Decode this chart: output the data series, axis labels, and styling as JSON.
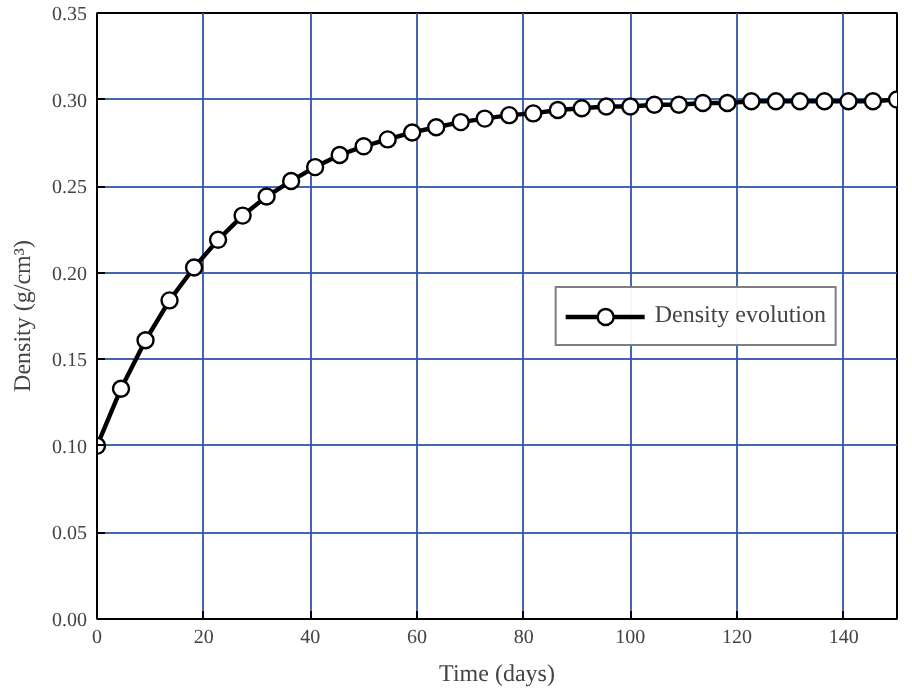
{
  "chart_data": {
    "type": "line",
    "xlabel": "Time (days)",
    "ylabel": "Density (g/cm³)",
    "x": [
      0,
      4.5,
      9.1,
      13.6,
      18.2,
      22.7,
      27.3,
      31.8,
      36.4,
      40.9,
      45.5,
      50.0,
      54.5,
      59.1,
      63.6,
      68.2,
      72.7,
      77.3,
      81.8,
      86.4,
      90.9,
      95.5,
      100.0,
      104.5,
      109.1,
      113.6,
      118.2,
      122.7,
      127.3,
      131.8,
      136.4,
      140.9,
      145.5,
      150.0
    ],
    "series": [
      {
        "name": "Density evolution",
        "color": "#000000",
        "values": [
          0.1,
          0.133,
          0.161,
          0.184,
          0.203,
          0.219,
          0.233,
          0.244,
          0.253,
          0.261,
          0.268,
          0.273,
          0.277,
          0.281,
          0.284,
          0.287,
          0.289,
          0.291,
          0.292,
          0.294,
          0.295,
          0.296,
          0.296,
          0.297,
          0.297,
          0.298,
          0.298,
          0.299,
          0.299,
          0.299,
          0.299,
          0.299,
          0.299,
          0.3
        ]
      }
    ],
    "xlim": [
      0,
      150
    ],
    "xticks": [
      0,
      20,
      40,
      60,
      80,
      100,
      120,
      140
    ],
    "ylim": [
      0,
      0.35
    ],
    "yticks": [
      {
        "value": 0,
        "label": "0.00"
      },
      {
        "value": 0.05,
        "label": "0.05"
      },
      {
        "value": 0.1,
        "label": "0.10"
      },
      {
        "value": 0.15,
        "label": "0.15"
      },
      {
        "value": 0.2,
        "label": "0.20"
      },
      {
        "value": 0.25,
        "label": "0.25"
      },
      {
        "value": 0.3,
        "label": "0.30"
      },
      {
        "value": 0.35,
        "label": "0.35"
      }
    ],
    "grid": true,
    "legend": "right",
    "marker": "circle",
    "line_style": "solid"
  }
}
